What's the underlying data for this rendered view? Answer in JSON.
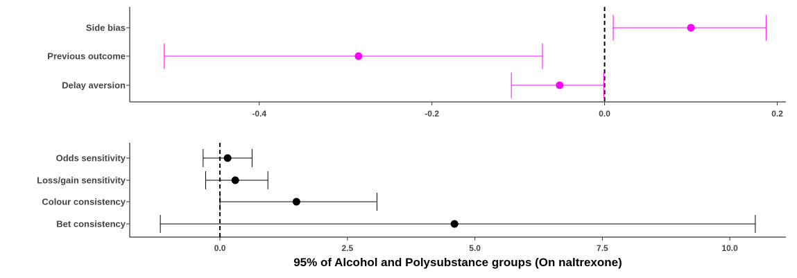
{
  "chart_data": [
    {
      "type": "forest",
      "title": "",
      "xlabel": "",
      "ylabel": "",
      "xlim": [
        -0.55,
        0.21
      ],
      "xticks": [
        -0.4,
        -0.2,
        0.0,
        0.2
      ],
      "xtick_labels": [
        "-0.4",
        "-0.2",
        "0.0",
        "0.2"
      ],
      "reference_line": 0,
      "grid": false,
      "color": "#ff00ff",
      "categories": [
        "Side bias",
        "Previous outcome",
        "Delay aversion"
      ],
      "estimates": [
        0.1,
        -0.285,
        -0.052
      ],
      "lower": [
        0.01,
        -0.51,
        -0.108
      ],
      "upper": [
        0.187,
        -0.072,
        -0.001
      ]
    },
    {
      "type": "forest",
      "title": "",
      "xlabel": "95% of Alcohol and Polysubstance groups (On naltrexone)",
      "ylabel": "",
      "xlim": [
        -1.77,
        11.1
      ],
      "xticks": [
        0.0,
        2.5,
        5.0,
        7.5,
        10.0
      ],
      "xtick_labels": [
        "0.0",
        "2.5",
        "5.0",
        "7.5",
        "10.0"
      ],
      "reference_line": 0,
      "grid": false,
      "color": "#000000",
      "categories": [
        "Odds sensitivity",
        "Loss/gain sensitivity",
        "Colour consistency",
        "Bet consistency"
      ],
      "estimates": [
        0.15,
        0.3,
        1.5,
        4.6
      ],
      "lower": [
        -0.33,
        -0.28,
        0.0,
        -1.17
      ],
      "upper": [
        0.63,
        0.94,
        3.08,
        10.5
      ]
    }
  ]
}
